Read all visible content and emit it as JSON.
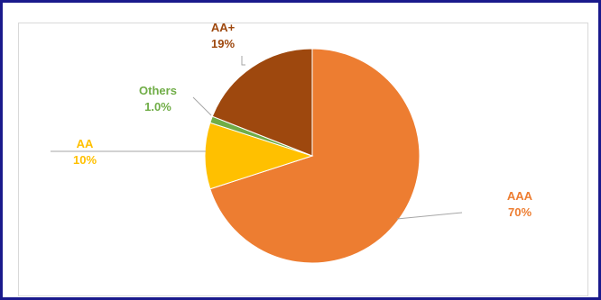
{
  "chart_data": {
    "type": "pie",
    "categories": [
      "AAA",
      "AA",
      "Others",
      "AA+"
    ],
    "values": [
      70,
      10,
      1.0,
      19
    ],
    "value_labels": [
      "70%",
      "10%",
      "1.0%",
      "19%"
    ],
    "colors": [
      "#ED7D31",
      "#FFC000",
      "#70AD47",
      "#9E480E"
    ],
    "title": "",
    "legend": "none",
    "data_labels": "outside with leader lines"
  }
}
